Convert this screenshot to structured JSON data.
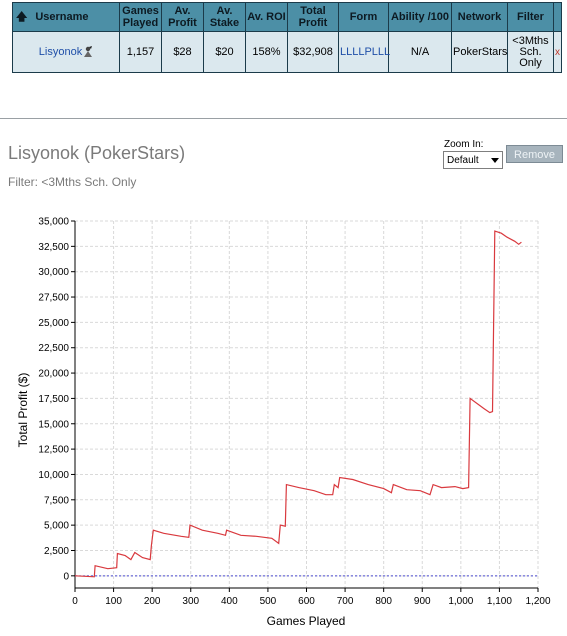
{
  "table": {
    "headers": {
      "username": "Username",
      "games_played": "Games Played",
      "av_profit": "Av. Profit",
      "av_stake": "Av. Stake",
      "av_roi": "Av. ROI",
      "total_profit": "Total Profit",
      "form": "Form",
      "ability": "Ability /100",
      "network": "Network",
      "filter": "Filter"
    },
    "row": {
      "username": "Lisyonok",
      "games_played": "1,157",
      "av_profit": "$28",
      "av_stake": "$20",
      "av_roi": "158%",
      "total_profit": "$32,908",
      "form": "LLLLPLLL",
      "ability": "N/A",
      "network": "PokerStars",
      "filter": "<3Mths Sch. Only",
      "remove": "x"
    }
  },
  "header": {
    "title": "Lisyonok (PokerStars)",
    "filter": "Filter: <3Mths Sch. Only",
    "zoom_label": "Zoom In:",
    "zoom_value": "Default",
    "remove_label": "Remove"
  },
  "colors": {
    "table_header": "#4c8fa6",
    "table_cell": "#dbe8ee",
    "line": "#d9393e",
    "zero_line": "#4a4ad0"
  },
  "chart_data": {
    "type": "line",
    "xlabel": "Games Played",
    "ylabel": "Total Profit ($)",
    "xlim": [
      0,
      1200
    ],
    "ylim": [
      -1200,
      35000
    ],
    "xticks": [
      "0",
      "100",
      "200",
      "300",
      "400",
      "500",
      "600",
      "700",
      "800",
      "900",
      "1,000",
      "1,100",
      "1,200"
    ],
    "yticks": [
      "0",
      "2,500",
      "5,000",
      "7,500",
      "10,000",
      "12,500",
      "15,000",
      "17,500",
      "20,000",
      "22,500",
      "25,000",
      "27,500",
      "30,000",
      "32,500",
      "35,000"
    ],
    "grid": true,
    "series": [
      {
        "points": [
          [
            0,
            0
          ],
          [
            50,
            -100
          ],
          [
            52,
            1000
          ],
          [
            85,
            700
          ],
          [
            108,
            800
          ],
          [
            110,
            2200
          ],
          [
            130,
            2000
          ],
          [
            145,
            1600
          ],
          [
            155,
            2300
          ],
          [
            175,
            1800
          ],
          [
            195,
            1600
          ],
          [
            198,
            3000
          ],
          [
            203,
            4500
          ],
          [
            230,
            4200
          ],
          [
            275,
            3900
          ],
          [
            295,
            3800
          ],
          [
            298,
            5000
          ],
          [
            330,
            4500
          ],
          [
            370,
            4200
          ],
          [
            390,
            4000
          ],
          [
            393,
            4500
          ],
          [
            430,
            4000
          ],
          [
            470,
            3900
          ],
          [
            510,
            3700
          ],
          [
            528,
            3200
          ],
          [
            532,
            5000
          ],
          [
            545,
            4900
          ],
          [
            548,
            9000
          ],
          [
            580,
            8700
          ],
          [
            620,
            8400
          ],
          [
            650,
            8000
          ],
          [
            668,
            8000
          ],
          [
            672,
            9000
          ],
          [
            682,
            8700
          ],
          [
            686,
            9700
          ],
          [
            720,
            9500
          ],
          [
            760,
            9000
          ],
          [
            800,
            8600
          ],
          [
            820,
            8200
          ],
          [
            825,
            9000
          ],
          [
            860,
            8500
          ],
          [
            895,
            8400
          ],
          [
            920,
            8000
          ],
          [
            928,
            9000
          ],
          [
            950,
            8700
          ],
          [
            985,
            8800
          ],
          [
            1005,
            8600
          ],
          [
            1020,
            8700
          ],
          [
            1024,
            17500
          ],
          [
            1060,
            16500
          ],
          [
            1075,
            16100
          ],
          [
            1082,
            16200
          ],
          [
            1088,
            34000
          ],
          [
            1105,
            33800
          ],
          [
            1120,
            33400
          ],
          [
            1140,
            33000
          ],
          [
            1150,
            32700
          ],
          [
            1157,
            32908
          ]
        ]
      }
    ]
  }
}
